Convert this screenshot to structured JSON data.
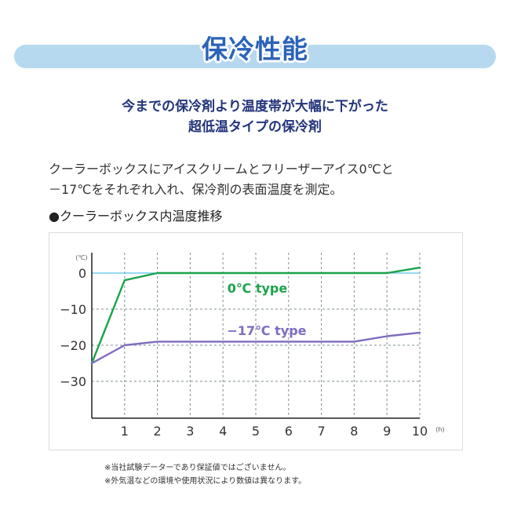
{
  "header": {
    "title": "保冷性能"
  },
  "headline": {
    "line1": "今までの保冷剤より温度帯が大幅に下がった",
    "line2": "超低温タイプの保冷剤"
  },
  "description": {
    "line1": "クーラーボックスにアイスクリームとフリーザーアイス0℃と",
    "line2": "－17℃をそれぞれ入れ、保冷剤の表面温度を測定。"
  },
  "section_label": "●クーラーボックス内温度推移",
  "notes": [
    "※当社試験データーであり保証値ではございません。",
    "※外気温などの環境や使用状況により数値は異なります。"
  ],
  "colors": {
    "title": "#2b63b8",
    "banner": "#b7d9ef",
    "series_0c": "#1aa34a",
    "series_m17c": "#7f6cc0",
    "zero_line": "#5bc0ea",
    "grid": "#7f8f8f"
  },
  "chart_data": {
    "type": "line",
    "x": [
      0,
      1,
      2,
      3,
      4,
      5,
      6,
      7,
      8,
      9,
      10
    ],
    "x_tick_labels": [
      "1",
      "2",
      "3",
      "4",
      "5",
      "6",
      "7",
      "8",
      "9",
      "10"
    ],
    "x_unit": "(h)",
    "y_unit": "(℃)",
    "y_tick_labels": [
      "0",
      "−10",
      "−20",
      "−30"
    ],
    "y_ticks": [
      0,
      -10,
      -20,
      -30
    ],
    "xlim": [
      0,
      10
    ],
    "ylim": [
      -40,
      2
    ],
    "grid": true,
    "series": [
      {
        "name": "0℃ type",
        "color": "#1aa34a",
        "x": [
          0,
          1,
          2,
          3,
          4,
          5,
          6,
          7,
          8,
          9,
          10
        ],
        "y": [
          -25,
          -2,
          0,
          0,
          0,
          0,
          0,
          0,
          0,
          0,
          1.5
        ]
      },
      {
        "name": "−17℃ type",
        "color": "#7f6cc0",
        "x": [
          0,
          1,
          2,
          3,
          4,
          5,
          6,
          7,
          8,
          9,
          10
        ],
        "y": [
          -25,
          -20,
          -19,
          -19,
          -19,
          -19,
          -19,
          -19,
          -19,
          -17.5,
          -16.5
        ]
      }
    ]
  }
}
